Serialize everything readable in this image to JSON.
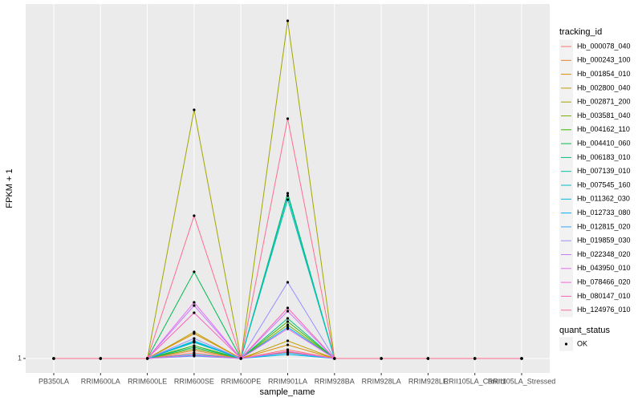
{
  "chart_data": {
    "type": "line",
    "x_label": "sample_name",
    "y_label": "FPKM + 1",
    "categories": [
      "PB350LA",
      "RRIM600LA",
      "RRIM600LE",
      "RRIM600SE",
      "RRIM600PE",
      "RRIM901LA",
      "RRIM928BA",
      "RRIM928LA",
      "RRIM928LE",
      "RRII105LA_Control",
      "RRII105LA_Stressed"
    ],
    "ylim": [
      -0.8,
      45.2
    ],
    "yticks": [
      1
    ],
    "grid": true,
    "point_color": "#000000",
    "legend_title": "tracking_id",
    "shape_legend": {
      "title": "quant_status",
      "labels": [
        "OK"
      ]
    },
    "series": [
      {
        "name": "Hb_000078_040",
        "color": "#F8766D",
        "values": [
          1,
          1,
          1,
          1.7,
          1,
          2.1,
          1,
          1,
          1,
          1,
          1
        ]
      },
      {
        "name": "Hb_000243_100",
        "color": "#EA8331",
        "values": [
          1,
          1,
          1,
          2.0,
          1,
          1.8,
          1,
          1,
          1,
          1,
          1
        ]
      },
      {
        "name": "Hb_001854_010",
        "color": "#D89000",
        "values": [
          1,
          1,
          1,
          4.1,
          1,
          2.7,
          1,
          1,
          1,
          1,
          1
        ]
      },
      {
        "name": "Hb_002800_040",
        "color": "#C09B00",
        "values": [
          1,
          1,
          1,
          4.3,
          1,
          3.2,
          1,
          1,
          1,
          1,
          1
        ]
      },
      {
        "name": "Hb_002871_200",
        "color": "#A3A500",
        "values": [
          1,
          1,
          1,
          32.0,
          1,
          43.1,
          1,
          1,
          1,
          1,
          1
        ]
      },
      {
        "name": "Hb_003581_040",
        "color": "#7CAE00",
        "values": [
          1,
          1,
          1,
          2.2,
          1,
          5.2,
          1,
          1,
          1,
          1,
          1
        ]
      },
      {
        "name": "Hb_004162_110",
        "color": "#39B600",
        "values": [
          1,
          1,
          1,
          2.6,
          1,
          5.6,
          1,
          1,
          1,
          1,
          1
        ]
      },
      {
        "name": "Hb_004410_060",
        "color": "#00BB4E",
        "values": [
          1,
          1,
          1,
          11.8,
          1,
          21.6,
          1,
          1,
          1,
          1,
          1
        ]
      },
      {
        "name": "Hb_006183_010",
        "color": "#00BF7D",
        "values": [
          1,
          1,
          1,
          2.4,
          1,
          6.0,
          1,
          1,
          1,
          1,
          1
        ]
      },
      {
        "name": "Hb_007139_010",
        "color": "#00C1A3",
        "values": [
          1,
          1,
          1,
          3.0,
          1,
          20.8,
          1,
          1,
          1,
          1,
          1
        ]
      },
      {
        "name": "Hb_007545_160",
        "color": "#00BFC4",
        "values": [
          1,
          1,
          1,
          3.2,
          1,
          21.3,
          1,
          1,
          1,
          1,
          1
        ]
      },
      {
        "name": "Hb_011362_030",
        "color": "#00BAE0",
        "values": [
          1,
          1,
          1,
          1.5,
          1,
          1.5,
          1,
          1,
          1,
          1,
          1
        ]
      },
      {
        "name": "Hb_012733_080",
        "color": "#00B0F6",
        "values": [
          1,
          1,
          1,
          3.1,
          1,
          4.9,
          1,
          1,
          1,
          1,
          1
        ]
      },
      {
        "name": "Hb_012815_020",
        "color": "#35A2FF",
        "values": [
          1,
          1,
          1,
          1.3,
          1,
          1.7,
          1,
          1,
          1,
          1,
          1
        ]
      },
      {
        "name": "Hb_019859_030",
        "color": "#9590FF",
        "values": [
          1,
          1,
          1,
          3.5,
          1,
          10.5,
          1,
          1,
          1,
          1,
          1
        ]
      },
      {
        "name": "Hb_022348_020",
        "color": "#C77CFF",
        "values": [
          1,
          1,
          1,
          7.6,
          1,
          6.9,
          1,
          1,
          1,
          1,
          1
        ]
      },
      {
        "name": "Hb_043950_010",
        "color": "#E76BF3",
        "values": [
          1,
          1,
          1,
          8.0,
          1,
          4.7,
          1,
          1,
          1,
          1,
          1
        ]
      },
      {
        "name": "Hb_078466_020",
        "color": "#FA62DB",
        "values": [
          1,
          1,
          1,
          1.4,
          1,
          1.9,
          1,
          1,
          1,
          1,
          1
        ]
      },
      {
        "name": "Hb_080147_010",
        "color": "#FF62BC",
        "values": [
          1,
          1,
          1,
          6.7,
          1,
          7.3,
          1,
          1,
          1,
          1,
          1
        ]
      },
      {
        "name": "Hb_124976_010",
        "color": "#FF6C91",
        "values": [
          1,
          1,
          1,
          18.8,
          1,
          30.9,
          1,
          1,
          1,
          1,
          1
        ]
      }
    ]
  }
}
